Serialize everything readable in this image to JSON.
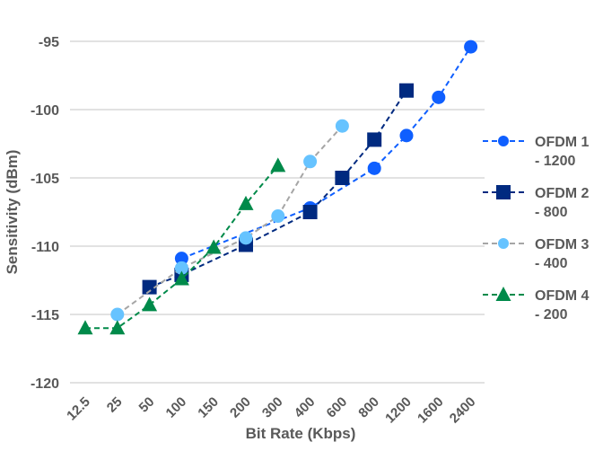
{
  "chart_data": {
    "type": "line",
    "title": "",
    "xlabel": "Bit Rate (Kbps)",
    "ylabel": "Sensitivity (dBm)",
    "categories": [
      "12.5",
      "25",
      "50",
      "100",
      "150",
      "200",
      "300",
      "400",
      "600",
      "800",
      "1200",
      "1600",
      "2400"
    ],
    "ylim": [
      -120,
      -95
    ],
    "yticks": [
      -95,
      -100,
      -105,
      -110,
      -115,
      -120
    ],
    "grid": true,
    "legend_position": "right",
    "series": [
      {
        "name": "OFDM 1",
        "name_line2": "- 1200",
        "marker": "circle",
        "color": "#0f5fff",
        "values": [
          null,
          null,
          null,
          -110.9,
          null,
          null,
          null,
          -107.2,
          null,
          -104.3,
          -101.9,
          -99.1,
          -95.4
        ]
      },
      {
        "name": "OFDM 2",
        "name_line2": "- 800",
        "marker": "square",
        "color": "#002a80",
        "values": [
          null,
          null,
          -113.0,
          -112.1,
          null,
          -109.9,
          null,
          -107.5,
          -105.0,
          -102.2,
          -98.6,
          null,
          null
        ]
      },
      {
        "name": "OFDM 3",
        "name_line2": "- 400",
        "marker": "circle",
        "color": "#66c3ff",
        "values": [
          null,
          -115.0,
          null,
          -111.6,
          null,
          -109.4,
          -107.8,
          -103.8,
          -101.2,
          null,
          null,
          null,
          null
        ]
      },
      {
        "name": "OFDM 4",
        "name_line2": "- 200",
        "marker": "triangle",
        "color": "#008a4a",
        "values": [
          -116.0,
          -116.0,
          -114.3,
          -112.4,
          -110.1,
          -106.9,
          -104.1,
          null,
          null,
          null,
          null,
          null,
          null
        ]
      }
    ],
    "line_colors": [
      "#0f5fff",
      "#002a80",
      "#a6a6a6",
      "#008a4a"
    ]
  }
}
